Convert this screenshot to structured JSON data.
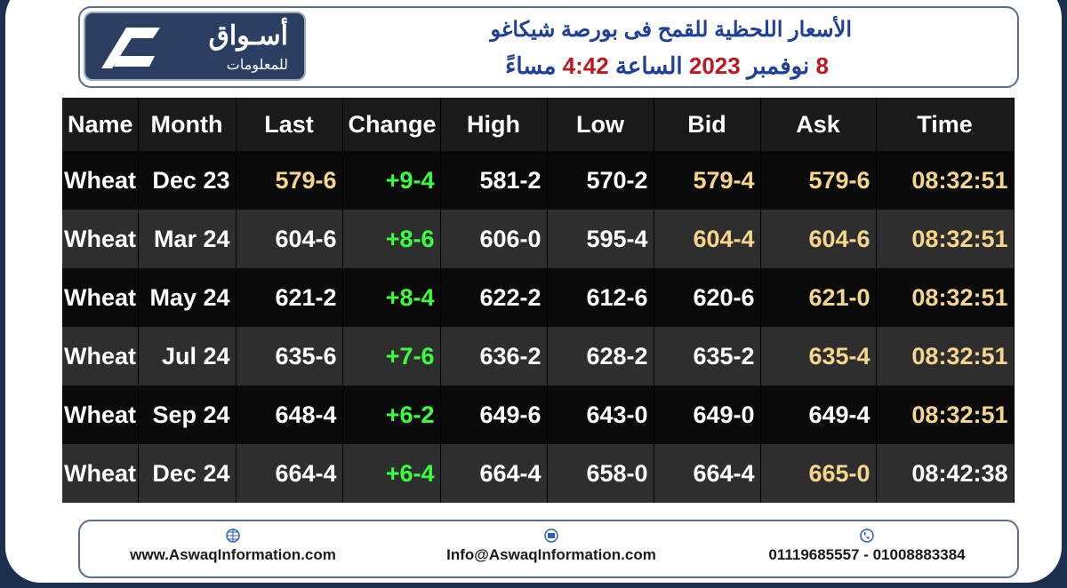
{
  "header": {
    "logo_title": "أسـواق",
    "logo_subtitle": "للمعلومات",
    "title": "الأسعار اللحظية للقمح فى بورصة شيكاغو",
    "subtitle_parts": [
      {
        "text": "8",
        "color": "#c0161d"
      },
      {
        "text": "نوفمبر",
        "color": "#1f3f9a"
      },
      {
        "text": "2023",
        "color": "#c0161d"
      },
      {
        "text": "الساعة",
        "color": "#1f3f9a"
      },
      {
        "text": "4:42",
        "color": "#c0161d"
      },
      {
        "text": "مساءً",
        "color": "#1f3f9a"
      }
    ]
  },
  "table": {
    "columns": [
      "Name",
      "Month",
      "Last",
      "Change",
      "High",
      "Low",
      "Bid",
      "Ask",
      "Time"
    ],
    "rows": [
      {
        "cells": [
          "Wheat",
          "Dec 23",
          "579-6",
          "+9-4",
          "581-2",
          "570-2",
          "579-4",
          "579-6",
          "08:32:51"
        ],
        "colors": [
          "#ffffff",
          "#ffffff",
          "#f6d68a",
          "#3cff3c",
          "#ffffff",
          "#ffffff",
          "#f6d68a",
          "#f6d68a",
          "#f6d68a"
        ]
      },
      {
        "cells": [
          "Wheat",
          "Mar 24",
          "604-6",
          "+8-6",
          "606-0",
          "595-4",
          "604-4",
          "604-6",
          "08:32:51"
        ],
        "colors": [
          "#ffffff",
          "#ffffff",
          "#ffffff",
          "#3cff3c",
          "#ffffff",
          "#ffffff",
          "#f6d68a",
          "#f6d68a",
          "#f6d68a"
        ]
      },
      {
        "cells": [
          "Wheat",
          "May 24",
          "621-2",
          "+8-4",
          "622-2",
          "612-6",
          "620-6",
          "621-0",
          "08:32:51"
        ],
        "colors": [
          "#ffffff",
          "#ffffff",
          "#ffffff",
          "#3cff3c",
          "#ffffff",
          "#ffffff",
          "#ffffff",
          "#f6d68a",
          "#f6d68a"
        ]
      },
      {
        "cells": [
          "Wheat",
          "Jul 24",
          "635-6",
          "+7-6",
          "636-2",
          "628-2",
          "635-2",
          "635-4",
          "08:32:51"
        ],
        "colors": [
          "#ffffff",
          "#ffffff",
          "#ffffff",
          "#3cff3c",
          "#ffffff",
          "#ffffff",
          "#ffffff",
          "#f6d68a",
          "#f6d68a"
        ]
      },
      {
        "cells": [
          "Wheat",
          "Sep 24",
          "648-4",
          "+6-2",
          "649-6",
          "643-0",
          "649-0",
          "649-4",
          "08:32:51"
        ],
        "colors": [
          "#ffffff",
          "#ffffff",
          "#ffffff",
          "#3cff3c",
          "#ffffff",
          "#ffffff",
          "#ffffff",
          "#ffffff",
          "#f6d68a"
        ]
      },
      {
        "cells": [
          "Wheat",
          "Dec 24",
          "664-4",
          "+6-4",
          "664-4",
          "658-0",
          "664-4",
          "665-0",
          "08:42:38"
        ],
        "colors": [
          "#ffffff",
          "#ffffff",
          "#ffffff",
          "#3cff3c",
          "#ffffff",
          "#ffffff",
          "#ffffff",
          "#f6d68a",
          "#ffffff"
        ]
      }
    ]
  },
  "footer": {
    "website": "www.AswaqInformation.com",
    "email": "Info@AswaqInformation.com",
    "phones": "01119685557 - 01008883384"
  }
}
